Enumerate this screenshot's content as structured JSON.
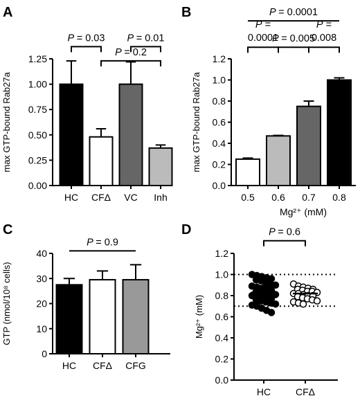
{
  "chart_data": [
    {
      "panel": "A",
      "type": "bar",
      "ylabel": "max GTP-bound Rab27a",
      "xlabel": "",
      "ylim": [
        0,
        1.25
      ],
      "yticks": [
        "0.00",
        "0.25",
        "0.50",
        "0.75",
        "1.00",
        "1.25"
      ],
      "categories": [
        "HC",
        "CFΔ",
        "VC",
        "Inh"
      ],
      "values": [
        1.0,
        0.48,
        1.0,
        0.37
      ],
      "errors": [
        0.23,
        0.08,
        0.22,
        0.03
      ],
      "colors": [
        "#000000",
        "#ffffff",
        "#666666",
        "#bbbbbb"
      ],
      "annotations": [
        {
          "text": "= 0.03",
          "from": 0,
          "to": 1,
          "level": 1.37
        },
        {
          "text": "= 0.01",
          "from": 2,
          "to": 3,
          "level": 1.37
        },
        {
          "text": "= 0.2",
          "from": 1,
          "to": 3,
          "level": 1.23
        }
      ]
    },
    {
      "panel": "B",
      "type": "bar",
      "ylabel": "max GTP-bound Rab27a",
      "xlabel": "Mg²⁺ (mM)",
      "ylim": [
        0,
        1.2
      ],
      "yticks": [
        "0.0",
        "0.2",
        "0.4",
        "0.6",
        "0.8",
        "1.0",
        "1.2"
      ],
      "categories": [
        "0.5",
        "0.6",
        "0.7",
        "0.8"
      ],
      "values": [
        0.25,
        0.47,
        0.75,
        1.0
      ],
      "errors": [
        0.01,
        0.005,
        0.05,
        0.02
      ],
      "colors": [
        "#ffffff",
        "#bbbbbb",
        "#666666",
        "#000000"
      ],
      "annotations": [
        {
          "lines": [
            "= 0.0001"
          ],
          "from": 0,
          "to": 3,
          "level": 1.56
        },
        {
          "lines": [
            "P =",
            "0.0001"
          ],
          "from": 0,
          "to": 1,
          "level": 1.31
        },
        {
          "lines": [
            "= 0.005"
          ],
          "from": 1,
          "to": 2,
          "level": 1.31
        },
        {
          "lines": [
            "P =",
            "0.008"
          ],
          "from": 2,
          "to": 3,
          "level": 1.31
        }
      ]
    },
    {
      "panel": "C",
      "type": "bar",
      "ylabel": "GTP (nmol/10⁸ cells)",
      "xlabel": "",
      "ylim": [
        0,
        40
      ],
      "yticks": [
        "0",
        "10",
        "20",
        "30",
        "40"
      ],
      "categories": [
        "HC",
        "CFΔ",
        "CFG"
      ],
      "values": [
        27.5,
        29.5,
        29.5
      ],
      "errors": [
        2.5,
        3.5,
        6.0
      ],
      "colors": [
        "#000000",
        "#ffffff",
        "#999999"
      ],
      "annotations": [
        {
          "text": "= 0.9",
          "from": 0,
          "to": 2,
          "level": 41
        }
      ]
    },
    {
      "panel": "D",
      "type": "scatter",
      "ylabel": "Mg²⁺ (mM)",
      "xlabel": "",
      "ylim": [
        0,
        1.2
      ],
      "yticks": [
        "0.0",
        "0.2",
        "0.4",
        "0.6",
        "0.8",
        "1.0",
        "1.2"
      ],
      "categories": [
        "HC",
        "CFΔ"
      ],
      "reference_lines": [
        1.0,
        0.7
      ],
      "groups": [
        {
          "category": "HC",
          "marker": "filled",
          "mean": 0.83,
          "values": [
            1.0,
            0.99,
            0.98,
            0.97,
            0.96,
            0.95,
            0.94,
            0.92,
            0.91,
            0.9,
            0.89,
            0.88,
            0.87,
            0.86,
            0.85,
            0.84,
            0.84,
            0.83,
            0.82,
            0.81,
            0.8,
            0.8,
            0.79,
            0.78,
            0.77,
            0.76,
            0.75,
            0.74,
            0.73,
            0.72,
            0.71,
            0.7,
            0.68,
            0.66,
            0.64
          ]
        },
        {
          "category": "CFΔ",
          "marker": "open",
          "mean": 0.82,
          "values": [
            0.91,
            0.89,
            0.88,
            0.87,
            0.86,
            0.86,
            0.85,
            0.84,
            0.84,
            0.83,
            0.82,
            0.82,
            0.81,
            0.8,
            0.8,
            0.79,
            0.78,
            0.77,
            0.76,
            0.75,
            0.74,
            0.73,
            0.72
          ]
        }
      ],
      "annotations": [
        {
          "text": "= 0.6",
          "from": 0,
          "to": 1,
          "level": 1.32
        }
      ]
    }
  ]
}
